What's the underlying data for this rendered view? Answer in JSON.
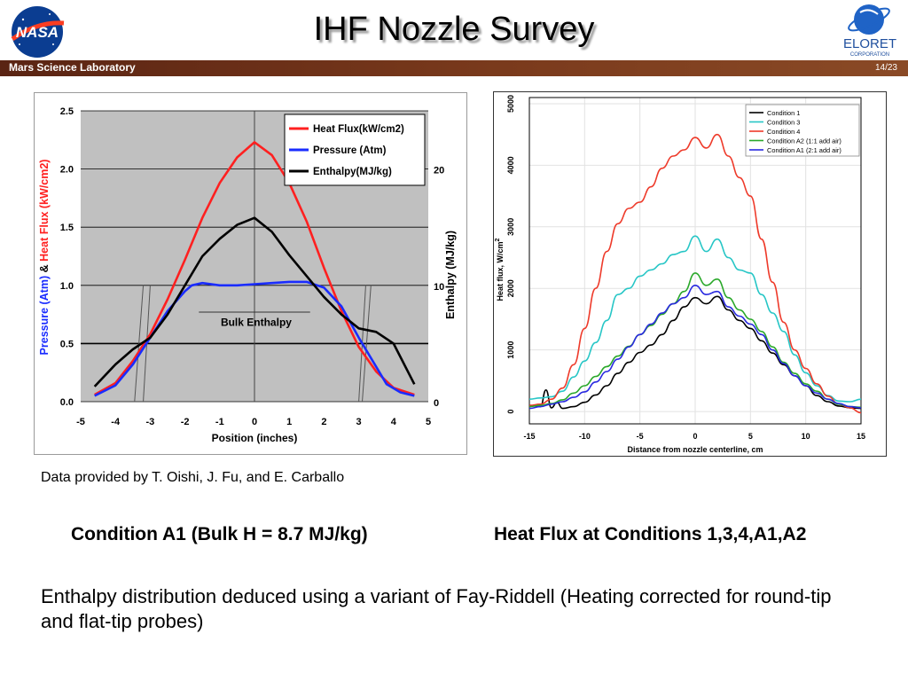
{
  "header": {
    "title": "IHF Nozzle Survey",
    "banner_left": "Mars Science Laboratory",
    "page_number": "14/23",
    "nasa_logo": "NASA",
    "eloret_logo": "ELORET",
    "eloret_sub": "CORPORATION"
  },
  "chart_data": [
    {
      "type": "line",
      "x_tick_labels": [
        "-5",
        "-4",
        "-3",
        "-2",
        "-1",
        "0",
        "1",
        "2",
        "3",
        "4",
        "5"
      ],
      "xlim": [
        -5,
        5
      ],
      "ylim": [
        0,
        2.5
      ],
      "y_tick_labels": [
        "0.0",
        "0.5",
        "1.0",
        "1.5",
        "2.0",
        "2.5"
      ],
      "y2lim": [
        0,
        25
      ],
      "y2_tick_labels": [
        "0",
        "10",
        "20"
      ],
      "xlabel": "Position    (inches)",
      "ylabel_parts": {
        "pressure": "Pressure (Atm)",
        "amp": " & ",
        "heatflux": "Heat Flux (kW/cm2)"
      },
      "y2label": "Enthalpy (MJ/kg)",
      "annotation": "Bulk Enthalpy",
      "legend_position": "top-right",
      "grid": true,
      "series": [
        {
          "name": "Heat Flux(kW/cm2)",
          "color": "#ff2020",
          "axis": "left",
          "x": [
            -4.6,
            -4.0,
            -3.5,
            -3.0,
            -2.5,
            -2.0,
            -1.5,
            -1.0,
            -0.5,
            0.0,
            0.5,
            1.0,
            1.5,
            2.0,
            2.5,
            3.0,
            3.5,
            4.0,
            4.6
          ],
          "y": [
            0.06,
            0.16,
            0.35,
            0.58,
            0.88,
            1.22,
            1.58,
            1.88,
            2.1,
            2.23,
            2.12,
            1.88,
            1.55,
            1.15,
            0.78,
            0.47,
            0.26,
            0.12,
            0.06
          ]
        },
        {
          "name": "Pressure (Atm)",
          "color": "#1a2cff",
          "axis": "left",
          "x": [
            -4.6,
            -4.0,
            -3.5,
            -3.0,
            -2.5,
            -2.0,
            -1.8,
            -1.5,
            -1.0,
            -0.5,
            0.0,
            0.5,
            1.0,
            1.5,
            2.0,
            2.5,
            3.0,
            3.5,
            3.8,
            4.2,
            4.6
          ],
          "y": [
            0.05,
            0.14,
            0.32,
            0.55,
            0.78,
            0.95,
            1.0,
            1.02,
            1.0,
            1.0,
            1.01,
            1.02,
            1.03,
            1.03,
            0.98,
            0.82,
            0.55,
            0.3,
            0.15,
            0.08,
            0.05
          ]
        },
        {
          "name": "Enthalpy(MJ/kg)",
          "color": "#000000",
          "axis": "right",
          "x": [
            -4.6,
            -4.0,
            -3.5,
            -3.0,
            -2.5,
            -2.0,
            -1.5,
            -1.0,
            -0.5,
            0.0,
            0.5,
            1.0,
            1.5,
            2.0,
            2.5,
            3.0,
            3.5,
            4.0,
            4.6
          ],
          "y": [
            1.3,
            3.2,
            4.5,
            5.5,
            7.5,
            10.0,
            12.5,
            14.0,
            15.2,
            15.8,
            14.6,
            12.6,
            10.8,
            9.0,
            7.5,
            6.3,
            6.0,
            5.0,
            1.5
          ]
        }
      ]
    },
    {
      "type": "line",
      "xlim": [
        -15,
        15
      ],
      "ylim": [
        -200,
        5100
      ],
      "x_tick_labels": [
        "-15",
        "-10",
        "-5",
        "0",
        "5",
        "10",
        "15"
      ],
      "y_tick_labels": [
        "0",
        "1000",
        "2000",
        "3000",
        "4000",
        "5000"
      ],
      "xlabel": "Distance from nozzle centerline, cm",
      "ylabel": "Heat flux, W/cm",
      "ylabel_sup": "2",
      "legend_position": "top-right",
      "grid": true,
      "series": [
        {
          "name": "Condition 1",
          "color": "#000000",
          "x": [
            -15,
            -14,
            -13.5,
            -13,
            -12.5,
            -12,
            -11,
            -10,
            -9,
            -8,
            -7,
            -6,
            -5,
            -4,
            -3,
            -2,
            -1,
            0,
            1,
            2,
            3,
            4,
            5,
            6,
            7,
            8,
            9,
            10,
            11,
            12,
            13,
            14,
            15
          ],
          "y": [
            100,
            80,
            350,
            60,
            150,
            50,
            80,
            150,
            270,
            420,
            620,
            800,
            960,
            1080,
            1250,
            1480,
            1700,
            1850,
            1750,
            1870,
            1650,
            1480,
            1350,
            1150,
            950,
            760,
            580,
            420,
            260,
            160,
            90,
            60,
            50
          ]
        },
        {
          "name": "Condition 3",
          "color": "#27c6c6",
          "x": [
            -15,
            -14,
            -13,
            -12,
            -11,
            -10,
            -9,
            -8,
            -7,
            -6,
            -5,
            -4,
            -3,
            -2,
            -1,
            0,
            1,
            2,
            3,
            4,
            5,
            6,
            7,
            8,
            9,
            10,
            11,
            12,
            13,
            14,
            15
          ],
          "y": [
            200,
            220,
            240,
            330,
            560,
            820,
            1120,
            1480,
            1900,
            2000,
            2200,
            2300,
            2400,
            2550,
            2600,
            2850,
            2600,
            2800,
            2500,
            2300,
            2250,
            1900,
            1600,
            1300,
            920,
            630,
            420,
            260,
            170,
            160,
            200
          ]
        },
        {
          "name": "Condition 4",
          "color": "#ee3a2a",
          "x": [
            -15,
            -14,
            -13,
            -12,
            -11,
            -10,
            -9,
            -8,
            -7,
            -6,
            -5,
            -4,
            -3,
            -2,
            -1,
            0,
            1,
            2,
            3,
            4,
            5,
            6,
            7,
            8,
            9,
            10,
            11,
            12,
            13,
            14,
            15
          ],
          "y": [
            100,
            120,
            200,
            380,
            760,
            1350,
            2000,
            2600,
            3050,
            3300,
            3400,
            3650,
            3950,
            4150,
            4250,
            4450,
            4280,
            4500,
            4150,
            3800,
            3500,
            2800,
            2100,
            1450,
            1000,
            700,
            450,
            250,
            120,
            60,
            -20
          ]
        },
        {
          "name": "Condition A2 (1:1 add air)",
          "color": "#2aa82a",
          "x": [
            -15,
            -14,
            -13,
            -12,
            -11,
            -10,
            -9,
            -8,
            -7,
            -6,
            -5,
            -4,
            -3,
            -2,
            -1,
            0,
            1,
            2,
            3,
            4,
            5,
            6,
            7,
            8,
            9,
            10,
            11,
            12,
            13,
            14,
            15
          ],
          "y": [
            80,
            100,
            130,
            190,
            300,
            420,
            570,
            730,
            900,
            1060,
            1250,
            1400,
            1580,
            1750,
            1950,
            2250,
            2050,
            2150,
            1850,
            1650,
            1500,
            1300,
            1050,
            800,
            620,
            450,
            330,
            200,
            120,
            80,
            70
          ]
        },
        {
          "name": "Condition A1 (2:1 add air)",
          "color": "#2a2ae0",
          "x": [
            -15,
            -14,
            -13,
            -12,
            -11,
            -10,
            -9,
            -8,
            -7,
            -6,
            -5,
            -4,
            -3,
            -2,
            -1,
            0,
            1,
            2,
            3,
            4,
            5,
            6,
            7,
            8,
            9,
            10,
            11,
            12,
            13,
            14,
            15
          ],
          "y": [
            50,
            80,
            120,
            160,
            230,
            320,
            480,
            650,
            850,
            1050,
            1250,
            1420,
            1600,
            1750,
            1850,
            2050,
            1900,
            1950,
            1700,
            1550,
            1420,
            1250,
            1000,
            780,
            580,
            420,
            300,
            200,
            130,
            80,
            60
          ]
        }
      ]
    }
  ],
  "captions": {
    "credit": "Data provided by T. Oishi, J. Fu, and E. Carballo",
    "left": "Condition A1 (Bulk H = 8.7 MJ/kg)",
    "right": "Heat Flux at Conditions 1,3,4,A1,A2",
    "body": "Enthalpy distribution deduced using a variant of Fay-Riddell (Heating corrected for round-tip and flat-tip probes)"
  },
  "colors": {
    "banner": "#6a2e18",
    "plot_bg_left": "#c0c0c0",
    "pressure_label": "#1a2cff",
    "heatflux_label": "#ff2020"
  }
}
